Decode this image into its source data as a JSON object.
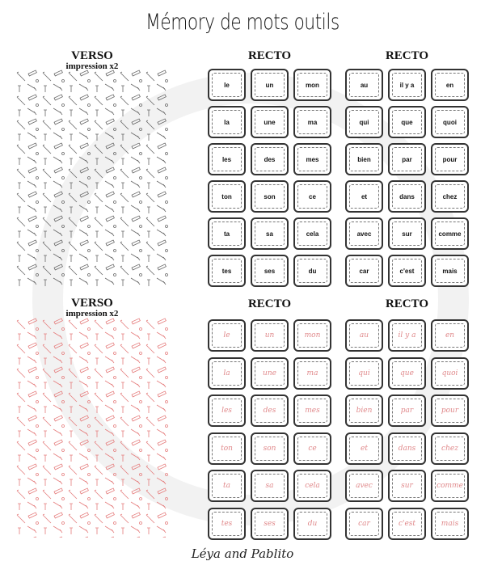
{
  "title": "Mémory de mots outils",
  "footer": "Léya and Pablito",
  "colors": {
    "print_words": "#111111",
    "cursive_words": "#e0898b",
    "pattern_top": "#555555",
    "pattern_bottom": "#e57c7c"
  },
  "sections": [
    {
      "verso": {
        "title": "VERSO",
        "subtitle": "impression x2",
        "pattern_icon": "tools-pattern-grey"
      },
      "recto_titles": [
        "RECTO",
        "RECTO"
      ],
      "style": "print",
      "grids": [
        [
          "le",
          "un",
          "mon",
          "la",
          "une",
          "ma",
          "les",
          "des",
          "mes",
          "ton",
          "son",
          "ce",
          "ta",
          "sa",
          "cela",
          "tes",
          "ses",
          "du"
        ],
        [
          "au",
          "il y a",
          "en",
          "qui",
          "que",
          "quoi",
          "bien",
          "par",
          "pour",
          "et",
          "dans",
          "chez",
          "avec",
          "sur",
          "comme",
          "car",
          "c'est",
          "mais"
        ]
      ]
    },
    {
      "verso": {
        "title": "VERSO",
        "subtitle": "impression x2",
        "pattern_icon": "tools-pattern-red"
      },
      "recto_titles": [
        "RECTO",
        "RECTO"
      ],
      "style": "cursive",
      "grids": [
        [
          "le",
          "un",
          "mon",
          "la",
          "une",
          "ma",
          "les",
          "des",
          "mes",
          "ton",
          "son",
          "ce",
          "ta",
          "sa",
          "cela",
          "tes",
          "ses",
          "du"
        ],
        [
          "au",
          "il y a",
          "en",
          "qui",
          "que",
          "quoi",
          "bien",
          "par",
          "pour",
          "et",
          "dans",
          "chez",
          "avec",
          "sur",
          "comme",
          "car",
          "c'est",
          "mais"
        ]
      ]
    }
  ]
}
